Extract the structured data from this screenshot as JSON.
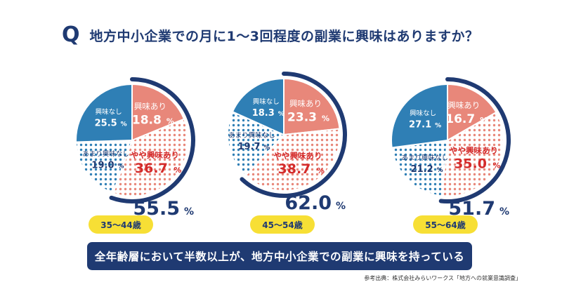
{
  "question": {
    "mark": "Q",
    "title": "地方中小企業での月に1〜3回程度の副業に興味はありますか？"
  },
  "colors": {
    "interested": "#e8877a",
    "somewhat": "#e8877a",
    "not_much": "#2f7fb5",
    "not": "#2f7fb5",
    "navy": "#1f3a72",
    "red_text": "#d42b2b",
    "yellow": "#f7df35"
  },
  "chart_data": [
    {
      "type": "pie",
      "age": "35〜44歳",
      "total": "55.5",
      "unit": "%",
      "slices": [
        {
          "label": "興味あり",
          "value": 18.8,
          "value_text": "18.8"
        },
        {
          "label": "やや興味あり",
          "value": 36.7,
          "value_text": "36.7"
        },
        {
          "label": "あまり興味なし",
          "value": 19.0,
          "value_text": "19.0"
        },
        {
          "label": "興味なし",
          "value": 25.5,
          "value_text": "25.5"
        }
      ]
    },
    {
      "type": "pie",
      "age": "45〜54歳",
      "total": "62.0",
      "unit": "%",
      "slices": [
        {
          "label": "興味あり",
          "value": 23.3,
          "value_text": "23.3"
        },
        {
          "label": "やや興味あり",
          "value": 38.7,
          "value_text": "38.7"
        },
        {
          "label": "あまり興味なし",
          "value": 19.7,
          "value_text": "19.7"
        },
        {
          "label": "興味なし",
          "value": 18.3,
          "value_text": "18.3"
        }
      ]
    },
    {
      "type": "pie",
      "age": "55〜64歳",
      "total": "51.7",
      "unit": "%",
      "slices": [
        {
          "label": "興味あり",
          "value": 16.7,
          "value_text": "16.7"
        },
        {
          "label": "やや興味あり",
          "value": 35.0,
          "value_text": "35.0"
        },
        {
          "label": "あまり興味なし",
          "value": 21.2,
          "value_text": "21.2"
        },
        {
          "label": "興味なし",
          "value": 27.1,
          "value_text": "27.1"
        }
      ]
    }
  ],
  "conclusion": "全年齢層において半数以上が、地方中小企業での副業に興味を持っている",
  "source": "参考出典：株式会社みらいワークス「地方への就業意識調査」"
}
